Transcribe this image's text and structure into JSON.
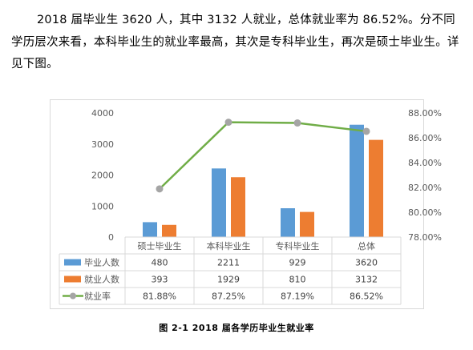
{
  "paragraph": "2018 届毕业生 3620 人，其中 3132 人就业，总体就业率为 86.52%。分不同学历层次来看，本科毕业生的就业率最高，其次是专科毕业生，再次是硕士毕业生。详见下图。",
  "caption": "图 2-1   2018 届各学历毕业生就业率",
  "chart_data": {
    "type": "bar",
    "categories": [
      "硕士毕业生",
      "本科毕业生",
      "专科毕业生",
      "总体"
    ],
    "series": [
      {
        "name": "毕业人数",
        "kind": "bar",
        "axis": "left",
        "color": "#5B9BD5",
        "values": [
          480,
          2211,
          929,
          3620
        ],
        "labels": [
          "480",
          "2211",
          "929",
          "3620"
        ]
      },
      {
        "name": "就业人数",
        "kind": "bar",
        "axis": "left",
        "color": "#ED7D31",
        "values": [
          393,
          1929,
          810,
          3132
        ],
        "labels": [
          "393",
          "1929",
          "810",
          "3132"
        ]
      },
      {
        "name": "就业率",
        "kind": "line",
        "axis": "right",
        "color": "#70AD47",
        "marker_color": "#A5A5A5",
        "values": [
          81.88,
          87.25,
          87.19,
          86.52
        ],
        "labels": [
          "81.88%",
          "87.25%",
          "87.19%",
          "86.52%"
        ]
      }
    ],
    "y_left": {
      "min": 0,
      "max": 4000,
      "ticks": [
        "0",
        "1000",
        "2000",
        "3000",
        "4000"
      ]
    },
    "y_right": {
      "min": 78,
      "max": 88,
      "ticks": [
        "78.00%",
        "80.00%",
        "82.00%",
        "84.00%",
        "86.00%",
        "88.00%"
      ]
    },
    "data_table": true,
    "grid": false
  }
}
